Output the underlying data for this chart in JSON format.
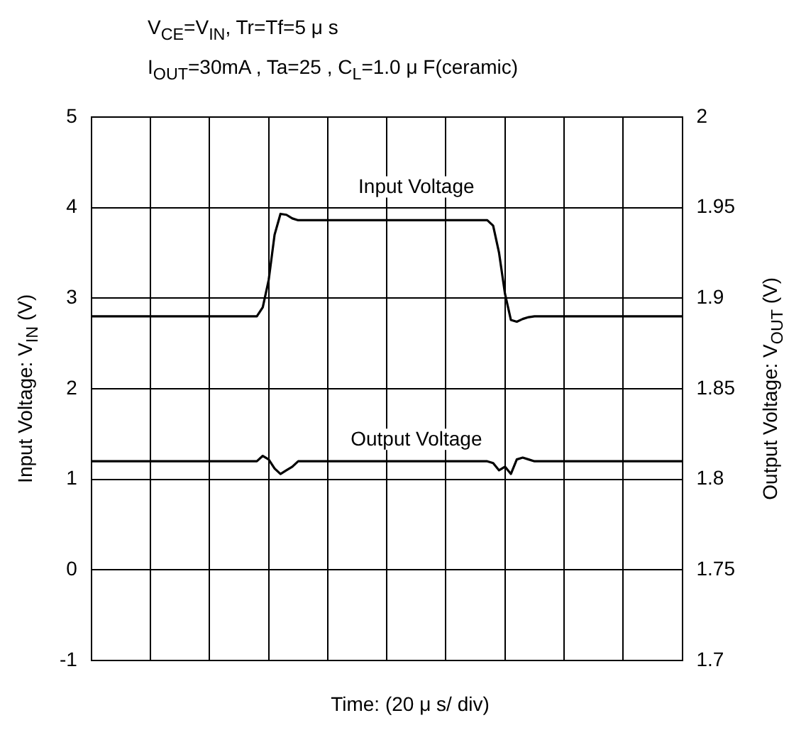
{
  "chart_data": {
    "type": "line",
    "subtitle": "V$_{CE}$=V$_{IN}$, Tr=Tf=5 μ s",
    "annotations": [
      "I$_{OUT}$=30mA , Ta=25    , C$_{L}$=1.0 μ F(ceramic)"
    ],
    "xlabel": "Time: (20 μ s/ div)",
    "ylabel": "Input Voltage: V$_{IN}$ (V)",
    "y2label": "Output Voltage: V$_{OUT}$ (V)",
    "categories": [
      null,
      null,
      null,
      null,
      null,
      null,
      null,
      null,
      null,
      null,
      null,
      null,
      null,
      null,
      null,
      null,
      null,
      null,
      null,
      null,
      null,
      null,
      null,
      null,
      null,
      null,
      null,
      null,
      null,
      null,
      null,
      null,
      null,
      null,
      null,
      null,
      null,
      null,
      null,
      null,
      null,
      null,
      null,
      null,
      null,
      null,
      null,
      null,
      null,
      null,
      null,
      null,
      null,
      null,
      null,
      null,
      null,
      null,
      null,
      null,
      null,
      null,
      null,
      null,
      null,
      null,
      null,
      null,
      null,
      null,
      null,
      null,
      null,
      null,
      null,
      null,
      null,
      null,
      null,
      null,
      null,
      null,
      null,
      null,
      null,
      null,
      null,
      null,
      null,
      null,
      null,
      null,
      null,
      null,
      null,
      null,
      null,
      null,
      null,
      null,
      null
    ],
    "ylim": [
      -1,
      5
    ],
    "yticks": [
      -1,
      0,
      1,
      2,
      3,
      4,
      5
    ],
    "y2lim": [
      1.7,
      2
    ],
    "y2ticks": [
      1.7,
      1.75,
      1.8,
      1.85,
      1.9,
      1.95,
      2
    ],
    "tick_labels": "y",
    "grid": true,
    "legend": false,
    "marker": "none",
    "line_style": "solid",
    "series": [
      {
        "name": "Input Voltage",
        "color": "#000000",
        "values": [
          2.8,
          2.8,
          2.8,
          2.8,
          2.8,
          2.8,
          2.8,
          2.8,
          2.8,
          2.8,
          2.8,
          2.8,
          2.8,
          2.8,
          2.8,
          2.8,
          2.8,
          2.8,
          2.8,
          2.8,
          2.8,
          2.8,
          2.8,
          2.8,
          2.8,
          2.8,
          2.8,
          2.8,
          2.8,
          2.9,
          3.2,
          3.7,
          3.93,
          3.92,
          3.88,
          3.86,
          3.86,
          3.86,
          3.86,
          3.86,
          3.86,
          3.86,
          3.86,
          3.86,
          3.86,
          3.86,
          3.86,
          3.86,
          3.86,
          3.86,
          3.86,
          3.86,
          3.86,
          3.86,
          3.86,
          3.86,
          3.86,
          3.86,
          3.86,
          3.86,
          3.86,
          3.86,
          3.86,
          3.86,
          3.86,
          3.86,
          3.86,
          3.86,
          3.8,
          3.5,
          3.05,
          2.76,
          2.74,
          2.77,
          2.79,
          2.8,
          2.8,
          2.8,
          2.8,
          2.8,
          2.8,
          2.8,
          2.8,
          2.8,
          2.8,
          2.8,
          2.8,
          2.8,
          2.8,
          2.8,
          2.8,
          2.8,
          2.8,
          2.8,
          2.8,
          2.8,
          2.8,
          2.8,
          2.8,
          2.8,
          2.8
        ]
      },
      {
        "name": "Output Voltage",
        "color": "#000000",
        "axis": "y2",
        "values": [
          1.81,
          1.81,
          1.81,
          1.81,
          1.81,
          1.81,
          1.81,
          1.81,
          1.81,
          1.81,
          1.81,
          1.81,
          1.81,
          1.81,
          1.81,
          1.81,
          1.81,
          1.81,
          1.81,
          1.81,
          1.81,
          1.81,
          1.81,
          1.81,
          1.81,
          1.81,
          1.81,
          1.81,
          1.81,
          1.813,
          1.811,
          1.806,
          1.803,
          1.805,
          1.807,
          1.81,
          1.81,
          1.81,
          1.81,
          1.81,
          1.81,
          1.81,
          1.81,
          1.81,
          1.81,
          1.81,
          1.81,
          1.81,
          1.81,
          1.81,
          1.81,
          1.81,
          1.81,
          1.81,
          1.81,
          1.81,
          1.81,
          1.81,
          1.81,
          1.81,
          1.81,
          1.81,
          1.81,
          1.81,
          1.81,
          1.81,
          1.81,
          1.81,
          1.809,
          1.805,
          1.807,
          1.803,
          1.811,
          1.812,
          1.811,
          1.81,
          1.81,
          1.81,
          1.81,
          1.81,
          1.81,
          1.81,
          1.81,
          1.81,
          1.81,
          1.81,
          1.81,
          1.81,
          1.81,
          1.81,
          1.81,
          1.81,
          1.81,
          1.81,
          1.81,
          1.81,
          1.81,
          1.81,
          1.81,
          1.81,
          1.81
        ]
      }
    ]
  }
}
